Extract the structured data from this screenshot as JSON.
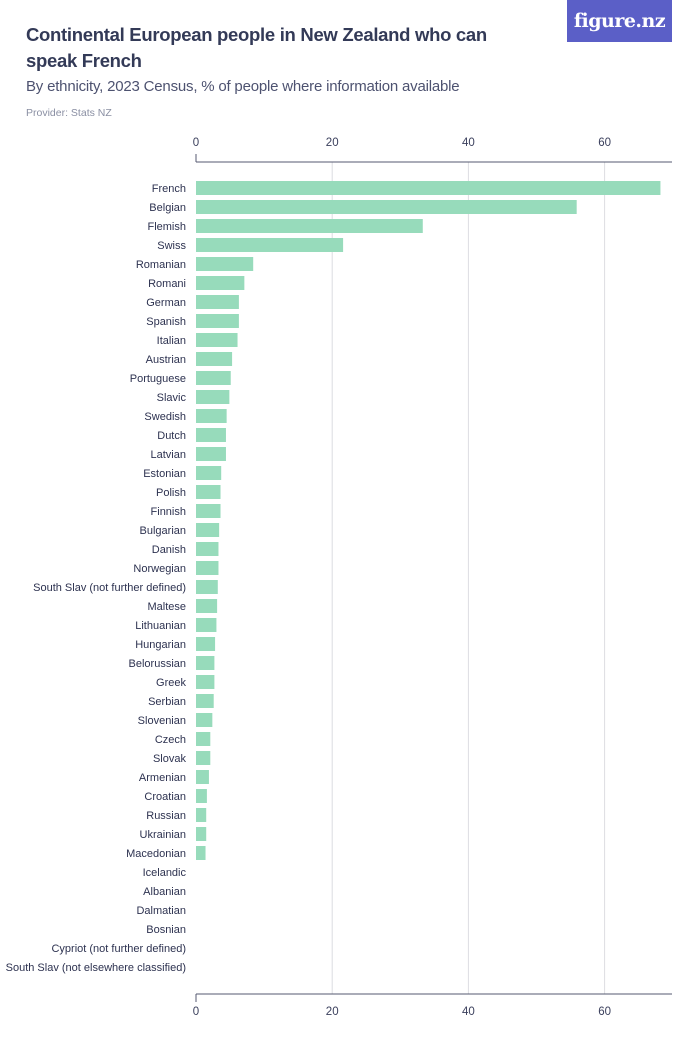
{
  "header": {
    "title": "Continental European people in New Zealand who can speak French",
    "subtitle": "By ethnicity, 2023 Census, % of people where information available",
    "provider": "Provider: Stats NZ",
    "logo_text": "figure.nz"
  },
  "colors": {
    "bar": "#97dbbb",
    "grid": "#dcdde2",
    "axis": "#555a70",
    "logo_bg": "#5b5fc7"
  },
  "chart_data": {
    "type": "bar",
    "orientation": "horizontal",
    "title": "Continental European people in New Zealand who can speak French",
    "subtitle": "By ethnicity, 2023 Census, % of people where information available",
    "xlim": [
      0,
      70
    ],
    "xticks": [
      0,
      20,
      40,
      60
    ],
    "grid": true,
    "categories": [
      "French",
      "Belgian",
      "Flemish",
      "Swiss",
      "Romanian",
      "Romani",
      "German",
      "Spanish",
      "Italian",
      "Austrian",
      "Portuguese",
      "Slavic",
      "Swedish",
      "Dutch",
      "Latvian",
      "Estonian",
      "Polish",
      "Finnish",
      "Bulgarian",
      "Danish",
      "Norwegian",
      "South Slav (not further defined)",
      "Maltese",
      "Lithuanian",
      "Hungarian",
      "Belorussian",
      "Greek",
      "Serbian",
      "Slovenian",
      "Czech",
      "Slovak",
      "Armenian",
      "Croatian",
      "Russian",
      "Ukrainian",
      "Macedonian",
      "Icelandic",
      "Albanian",
      "Dalmatian",
      "Bosnian",
      "Cypriot (not further defined)",
      "South Slav (not elsewhere classified)"
    ],
    "values": [
      68.2,
      55.9,
      33.3,
      21.6,
      8.4,
      7.1,
      6.3,
      6.3,
      6.1,
      5.3,
      5.1,
      4.9,
      4.5,
      4.4,
      4.4,
      3.7,
      3.6,
      3.6,
      3.4,
      3.3,
      3.3,
      3.2,
      3.1,
      3.0,
      2.8,
      2.7,
      2.7,
      2.6,
      2.4,
      2.1,
      2.1,
      1.9,
      1.6,
      1.5,
      1.5,
      1.4,
      0,
      0,
      0,
      0,
      0,
      0
    ]
  }
}
